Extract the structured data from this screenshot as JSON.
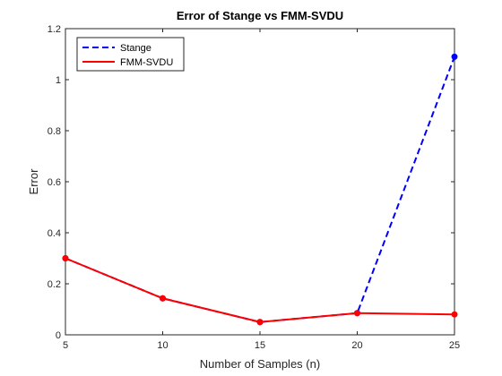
{
  "chart_data": {
    "type": "line",
    "title": "Error of Stange vs FMM-SVDU",
    "xlabel": "Number of Samples (n)",
    "ylabel": "Error",
    "xlim": [
      5,
      25
    ],
    "ylim": [
      0,
      1.2
    ],
    "xticks": [
      5,
      10,
      15,
      20,
      25
    ],
    "yticks": [
      0,
      0.2,
      0.4,
      0.6,
      0.8,
      1,
      1.2
    ],
    "xtick_labels": [
      "5",
      "10",
      "15",
      "20",
      "25"
    ],
    "ytick_labels": [
      "0",
      "0.2",
      "0.4",
      "0.6",
      "0.8",
      "1",
      "1.2"
    ],
    "grid": false,
    "legend_position": "top-left",
    "x": [
      5,
      10,
      15,
      20,
      25
    ],
    "series": [
      {
        "name": "Stange",
        "values": [
          0.3,
          0.143,
          0.05,
          0.085,
          1.09
        ],
        "color": "#0000ff",
        "line_style": "dashed",
        "marker_color": "#0000ff"
      },
      {
        "name": "FMM-SVDU",
        "values": [
          0.3,
          0.143,
          0.05,
          0.085,
          0.08
        ],
        "color": "#ff0000",
        "line_style": "solid",
        "marker_color": "#ff0000"
      }
    ]
  }
}
